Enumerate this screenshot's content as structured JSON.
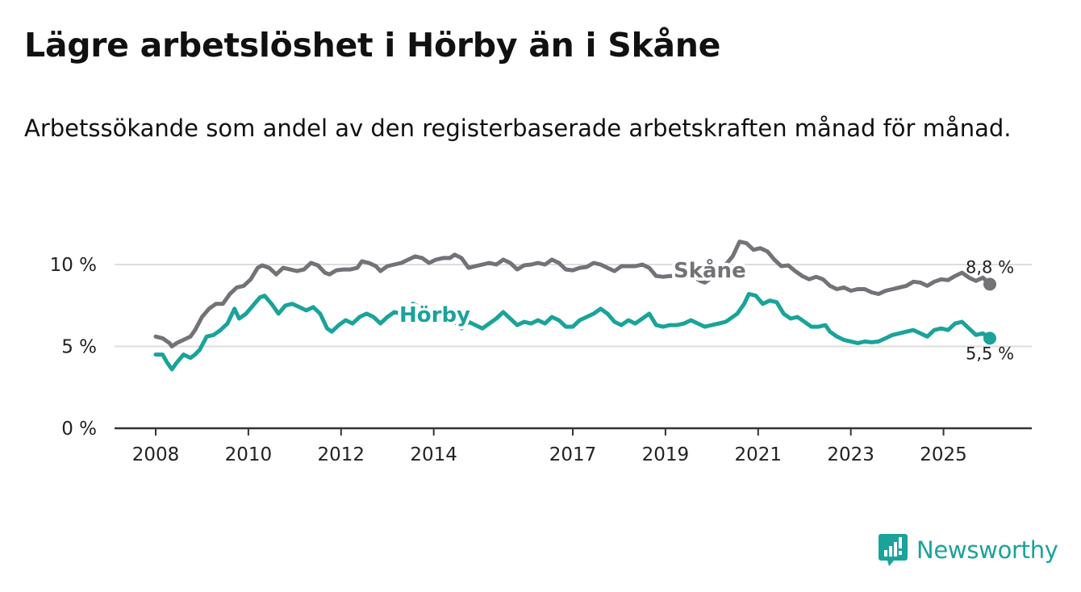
{
  "title": "Lägre arbetslöshet i Hörby än i Skåne",
  "subtitle": "Arbetssökande som andel av den registerbaserade arbetskraften månad för månad.",
  "logo_text": "Newsworthy",
  "colors": {
    "skane": "#727277",
    "horby": "#1aa39a",
    "grid": "#dddddd",
    "axis": "#333333"
  },
  "chart_data": {
    "type": "line",
    "title": "Lägre arbetslöshet i Hörby än i Skåne",
    "xlabel": "",
    "ylabel": "",
    "ylim": [
      0,
      10
    ],
    "xlim": [
      2008.0,
      2026.0
    ],
    "yticks": [
      0,
      5,
      10
    ],
    "ytick_labels": [
      "0 %",
      "5 %",
      "10 %"
    ],
    "xticks": [
      2008,
      2010,
      2012,
      2014,
      2017,
      2019,
      2021,
      2023,
      2025
    ],
    "xtick_labels": [
      "2008",
      "2010",
      "2012",
      "2014",
      "2017",
      "2019",
      "2021",
      "2023",
      "2025"
    ],
    "series": [
      {
        "name": "Skåne",
        "label": "Skåne",
        "end_label": "8,8 %",
        "points": [
          [
            2008.0,
            5.6
          ],
          [
            2008.15,
            5.5
          ],
          [
            2008.3,
            5.2
          ],
          [
            2008.35,
            5.0
          ],
          [
            2008.45,
            5.2
          ],
          [
            2008.6,
            5.4
          ],
          [
            2008.75,
            5.6
          ],
          [
            2008.85,
            6.0
          ],
          [
            2009.0,
            6.8
          ],
          [
            2009.15,
            7.3
          ],
          [
            2009.3,
            7.6
          ],
          [
            2009.45,
            7.6
          ],
          [
            2009.6,
            8.2
          ],
          [
            2009.75,
            8.6
          ],
          [
            2009.9,
            8.7
          ],
          [
            2010.05,
            9.1
          ],
          [
            2010.2,
            9.8
          ],
          [
            2010.3,
            9.95
          ],
          [
            2010.45,
            9.8
          ],
          [
            2010.6,
            9.4
          ],
          [
            2010.75,
            9.8
          ],
          [
            2010.9,
            9.7
          ],
          [
            2011.05,
            9.6
          ],
          [
            2011.2,
            9.7
          ],
          [
            2011.35,
            10.1
          ],
          [
            2011.5,
            9.95
          ],
          [
            2011.65,
            9.5
          ],
          [
            2011.75,
            9.4
          ],
          [
            2011.9,
            9.65
          ],
          [
            2012.05,
            9.7
          ],
          [
            2012.2,
            9.7
          ],
          [
            2012.35,
            9.8
          ],
          [
            2012.45,
            10.2
          ],
          [
            2012.6,
            10.1
          ],
          [
            2012.75,
            9.9
          ],
          [
            2012.85,
            9.6
          ],
          [
            2013.0,
            9.9
          ],
          [
            2013.15,
            10.0
          ],
          [
            2013.3,
            10.1
          ],
          [
            2013.45,
            10.3
          ],
          [
            2013.6,
            10.5
          ],
          [
            2013.75,
            10.4
          ],
          [
            2013.9,
            10.1
          ],
          [
            2014.05,
            10.3
          ],
          [
            2014.2,
            10.4
          ],
          [
            2014.35,
            10.4
          ],
          [
            2014.45,
            10.6
          ],
          [
            2014.6,
            10.4
          ],
          [
            2014.75,
            9.8
          ],
          [
            2014.9,
            9.9
          ],
          [
            2015.05,
            10.0
          ],
          [
            2015.2,
            10.1
          ],
          [
            2015.35,
            10.0
          ],
          [
            2015.5,
            10.3
          ],
          [
            2015.65,
            10.1
          ],
          [
            2015.8,
            9.7
          ],
          [
            2015.95,
            9.95
          ],
          [
            2016.1,
            10.0
          ],
          [
            2016.25,
            10.1
          ],
          [
            2016.4,
            10.0
          ],
          [
            2016.55,
            10.3
          ],
          [
            2016.7,
            10.1
          ],
          [
            2016.85,
            9.7
          ],
          [
            2017.0,
            9.65
          ],
          [
            2017.15,
            9.8
          ],
          [
            2017.3,
            9.85
          ],
          [
            2017.45,
            10.1
          ],
          [
            2017.6,
            10.0
          ],
          [
            2017.75,
            9.8
          ],
          [
            2017.9,
            9.6
          ],
          [
            2018.05,
            9.9
          ],
          [
            2018.2,
            9.9
          ],
          [
            2018.35,
            9.9
          ],
          [
            2018.5,
            10.0
          ],
          [
            2018.65,
            9.8
          ],
          [
            2018.8,
            9.3
          ],
          [
            2018.95,
            9.25
          ],
          [
            2019.1,
            9.3
          ],
          [
            2019.25,
            9.3
          ],
          [
            2019.35,
            9.2
          ],
          [
            2019.45,
            9.4
          ],
          [
            2019.6,
            9.3
          ],
          [
            2019.75,
            9.0
          ],
          [
            2019.85,
            8.9
          ],
          [
            2020.0,
            9.2
          ],
          [
            2020.1,
            9.6
          ],
          [
            2020.2,
            9.9
          ],
          [
            2020.3,
            10.0
          ],
          [
            2020.45,
            10.5
          ],
          [
            2020.6,
            11.4
          ],
          [
            2020.75,
            11.3
          ],
          [
            2020.9,
            10.9
          ],
          [
            2021.05,
            11.0
          ],
          [
            2021.2,
            10.8
          ],
          [
            2021.35,
            10.3
          ],
          [
            2021.5,
            9.9
          ],
          [
            2021.65,
            9.95
          ],
          [
            2021.8,
            9.6
          ],
          [
            2021.95,
            9.3
          ],
          [
            2022.1,
            9.1
          ],
          [
            2022.25,
            9.25
          ],
          [
            2022.4,
            9.1
          ],
          [
            2022.55,
            8.7
          ],
          [
            2022.7,
            8.5
          ],
          [
            2022.85,
            8.6
          ],
          [
            2023.0,
            8.4
          ],
          [
            2023.15,
            8.5
          ],
          [
            2023.3,
            8.5
          ],
          [
            2023.45,
            8.3
          ],
          [
            2023.6,
            8.2
          ],
          [
            2023.75,
            8.4
          ],
          [
            2023.9,
            8.5
          ],
          [
            2024.05,
            8.6
          ],
          [
            2024.2,
            8.7
          ],
          [
            2024.35,
            8.95
          ],
          [
            2024.5,
            8.9
          ],
          [
            2024.65,
            8.7
          ],
          [
            2024.8,
            8.95
          ],
          [
            2024.95,
            9.1
          ],
          [
            2025.1,
            9.05
          ],
          [
            2025.25,
            9.3
          ],
          [
            2025.4,
            9.5
          ],
          [
            2025.55,
            9.2
          ],
          [
            2025.7,
            9.0
          ],
          [
            2025.85,
            9.2
          ],
          [
            2026.0,
            8.8
          ]
        ]
      },
      {
        "name": "Hörby",
        "label": "Hörby",
        "end_label": "5,5 %",
        "points": [
          [
            2008.0,
            4.5
          ],
          [
            2008.15,
            4.5
          ],
          [
            2008.25,
            4.0
          ],
          [
            2008.35,
            3.6
          ],
          [
            2008.45,
            4.0
          ],
          [
            2008.6,
            4.5
          ],
          [
            2008.75,
            4.3
          ],
          [
            2008.85,
            4.5
          ],
          [
            2008.95,
            4.8
          ],
          [
            2009.1,
            5.6
          ],
          [
            2009.25,
            5.7
          ],
          [
            2009.4,
            6.0
          ],
          [
            2009.55,
            6.4
          ],
          [
            2009.7,
            7.3
          ],
          [
            2009.8,
            6.7
          ],
          [
            2009.95,
            7.0
          ],
          [
            2010.1,
            7.5
          ],
          [
            2010.25,
            8.0
          ],
          [
            2010.35,
            8.1
          ],
          [
            2010.5,
            7.6
          ],
          [
            2010.65,
            7.0
          ],
          [
            2010.8,
            7.5
          ],
          [
            2010.95,
            7.6
          ],
          [
            2011.1,
            7.4
          ],
          [
            2011.25,
            7.2
          ],
          [
            2011.4,
            7.4
          ],
          [
            2011.55,
            7.0
          ],
          [
            2011.7,
            6.1
          ],
          [
            2011.8,
            5.9
          ],
          [
            2011.95,
            6.3
          ],
          [
            2012.1,
            6.6
          ],
          [
            2012.25,
            6.4
          ],
          [
            2012.4,
            6.8
          ],
          [
            2012.55,
            7.0
          ],
          [
            2012.7,
            6.8
          ],
          [
            2012.85,
            6.4
          ],
          [
            2013.0,
            6.8
          ],
          [
            2013.15,
            7.1
          ],
          [
            2013.3,
            7.0
          ],
          [
            2013.45,
            7.3
          ],
          [
            2013.55,
            7.6
          ],
          [
            2013.7,
            7.4
          ],
          [
            2013.85,
            7.0
          ],
          [
            2014.0,
            6.8
          ],
          [
            2014.15,
            6.7
          ],
          [
            2014.3,
            6.8
          ],
          [
            2014.45,
            6.5
          ],
          [
            2014.6,
            6.1
          ],
          [
            2014.75,
            6.5
          ],
          [
            2014.9,
            6.3
          ],
          [
            2015.05,
            6.1
          ],
          [
            2015.2,
            6.4
          ],
          [
            2015.35,
            6.7
          ],
          [
            2015.5,
            7.1
          ],
          [
            2015.65,
            6.7
          ],
          [
            2015.8,
            6.3
          ],
          [
            2015.95,
            6.5
          ],
          [
            2016.1,
            6.4
          ],
          [
            2016.25,
            6.6
          ],
          [
            2016.4,
            6.4
          ],
          [
            2016.55,
            6.8
          ],
          [
            2016.7,
            6.6
          ],
          [
            2016.85,
            6.2
          ],
          [
            2017.0,
            6.2
          ],
          [
            2017.15,
            6.6
          ],
          [
            2017.3,
            6.8
          ],
          [
            2017.45,
            7.0
          ],
          [
            2017.6,
            7.3
          ],
          [
            2017.75,
            7.0
          ],
          [
            2017.9,
            6.5
          ],
          [
            2018.05,
            6.3
          ],
          [
            2018.2,
            6.6
          ],
          [
            2018.35,
            6.4
          ],
          [
            2018.5,
            6.7
          ],
          [
            2018.65,
            7.0
          ],
          [
            2018.8,
            6.3
          ],
          [
            2018.95,
            6.2
          ],
          [
            2019.1,
            6.3
          ],
          [
            2019.25,
            6.3
          ],
          [
            2019.4,
            6.4
          ],
          [
            2019.55,
            6.6
          ],
          [
            2019.7,
            6.4
          ],
          [
            2019.85,
            6.2
          ],
          [
            2020.0,
            6.3
          ],
          [
            2020.15,
            6.4
          ],
          [
            2020.3,
            6.5
          ],
          [
            2020.45,
            6.8
          ],
          [
            2020.55,
            7.0
          ],
          [
            2020.7,
            7.6
          ],
          [
            2020.8,
            8.2
          ],
          [
            2020.95,
            8.1
          ],
          [
            2021.1,
            7.6
          ],
          [
            2021.25,
            7.8
          ],
          [
            2021.4,
            7.7
          ],
          [
            2021.55,
            7.0
          ],
          [
            2021.7,
            6.7
          ],
          [
            2021.85,
            6.8
          ],
          [
            2022.0,
            6.5
          ],
          [
            2022.15,
            6.2
          ],
          [
            2022.3,
            6.2
          ],
          [
            2022.45,
            6.3
          ],
          [
            2022.55,
            5.9
          ],
          [
            2022.7,
            5.6
          ],
          [
            2022.85,
            5.4
          ],
          [
            2023.0,
            5.3
          ],
          [
            2023.15,
            5.2
          ],
          [
            2023.3,
            5.3
          ],
          [
            2023.45,
            5.25
          ],
          [
            2023.6,
            5.3
          ],
          [
            2023.75,
            5.5
          ],
          [
            2023.9,
            5.7
          ],
          [
            2024.05,
            5.8
          ],
          [
            2024.2,
            5.9
          ],
          [
            2024.35,
            6.0
          ],
          [
            2024.5,
            5.8
          ],
          [
            2024.65,
            5.6
          ],
          [
            2024.8,
            6.0
          ],
          [
            2024.95,
            6.1
          ],
          [
            2025.1,
            6.0
          ],
          [
            2025.25,
            6.4
          ],
          [
            2025.4,
            6.5
          ],
          [
            2025.55,
            6.1
          ],
          [
            2025.7,
            5.7
          ],
          [
            2025.85,
            5.8
          ],
          [
            2026.0,
            5.5
          ]
        ]
      }
    ]
  }
}
